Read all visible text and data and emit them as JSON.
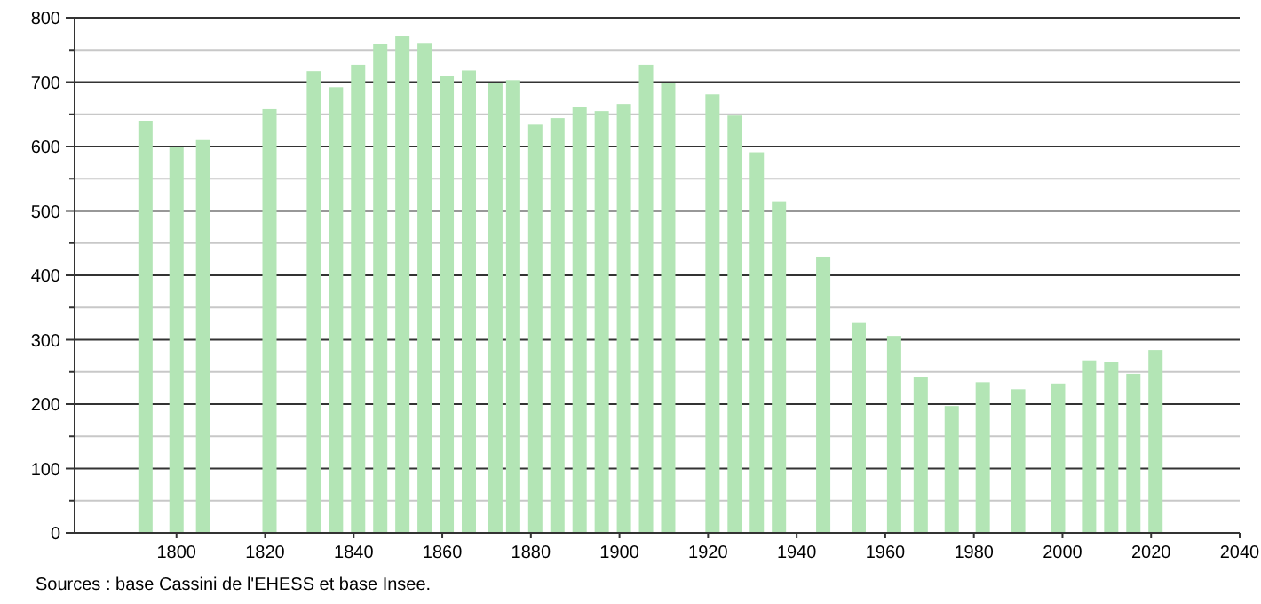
{
  "chart_data": {
    "type": "bar",
    "color": "#b3e5b5",
    "x": [
      1793,
      1800,
      1806,
      1821,
      1831,
      1836,
      1841,
      1846,
      1851,
      1856,
      1861,
      1866,
      1872,
      1876,
      1881,
      1886,
      1891,
      1896,
      1901,
      1906,
      1911,
      1921,
      1926,
      1931,
      1936,
      1946,
      1954,
      1962,
      1968,
      1975,
      1982,
      1990,
      1999,
      2006,
      2011,
      2016,
      2021
    ],
    "values": [
      640,
      600,
      610,
      658,
      717,
      692,
      727,
      760,
      771,
      761,
      710,
      718,
      699,
      703,
      634,
      644,
      661,
      655,
      666,
      727,
      699,
      681,
      648,
      591,
      515,
      429,
      326,
      306,
      242,
      197,
      234,
      223,
      232,
      268,
      265,
      247,
      284
    ],
    "xlim": [
      1777,
      2040
    ],
    "xticks": [
      1800,
      1820,
      1840,
      1860,
      1880,
      1900,
      1920,
      1940,
      1960,
      1980,
      2000,
      2020,
      2040
    ],
    "ylim": [
      0,
      800
    ],
    "yticks": [
      0,
      {
        "value": 50,
        "label": null
      },
      100,
      {
        "value": 150,
        "label": null
      },
      200,
      {
        "value": 250,
        "label": null
      },
      300,
      {
        "value": 350,
        "label": null
      },
      400,
      {
        "value": 450,
        "label": null
      },
      500,
      {
        "value": 550,
        "label": null
      },
      600,
      {
        "value": 650,
        "label": null
      },
      700,
      {
        "value": 750,
        "label": null
      },
      800
    ],
    "grid": true,
    "annotations": [
      "Sources : base Cassini de l'EHESS et base Insee."
    ]
  }
}
